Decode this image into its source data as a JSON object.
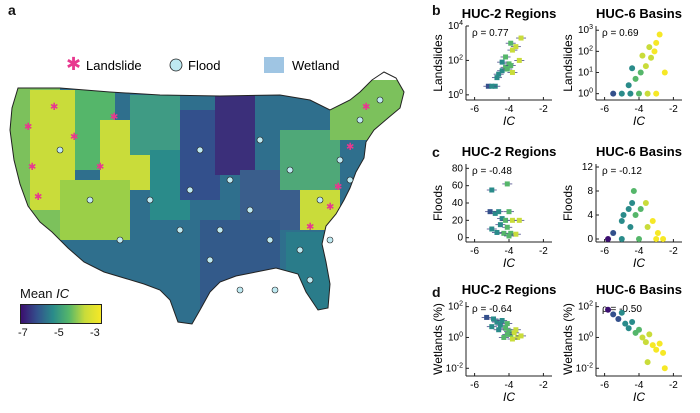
{
  "panel_a": {
    "letter": "a",
    "legend": {
      "landslide": "Landslide",
      "flood": "Flood",
      "wetland": "Wetland"
    },
    "colorbar": {
      "title_prefix": "Mean ",
      "title_var": "IC",
      "ticks": [
        "-7",
        "-5",
        "-3"
      ]
    },
    "colors": {
      "landslide": "#e8388f",
      "flood_fill": "#bfeaf2",
      "wetland": "#9fc5e3",
      "ramp": [
        "#3b0f70",
        "#33508c",
        "#2a8b8a",
        "#55b66a",
        "#c9dc3a",
        "#f6e826"
      ]
    }
  },
  "chart_data": [
    {
      "panel": "b",
      "title": "HUC-2 Regions",
      "type": "scatter",
      "rho": "ρ = 0.77",
      "xlabel": "IC",
      "ylabel": "Landslides",
      "xlim": [
        -6.5,
        -1.5
      ],
      "xticks": [
        "-6",
        "-4",
        "-2"
      ],
      "ylim_log10": [
        -0.3,
        4
      ],
      "yticks": [
        "10^0",
        "10^2",
        "10^4"
      ],
      "points": [
        {
          "x": -5.2,
          "y": 0.5
        },
        {
          "x": -4.8,
          "y": 0.5
        },
        {
          "x": -5.0,
          "y": 0.5
        },
        {
          "x": -4.7,
          "y": 1.0
        },
        {
          "x": -4.6,
          "y": 1.2
        },
        {
          "x": -4.4,
          "y": 1.4
        },
        {
          "x": -4.2,
          "y": 1.6
        },
        {
          "x": -4.0,
          "y": 1.8
        },
        {
          "x": -4.4,
          "y": 1.9
        },
        {
          "x": -3.9,
          "y": 1.7
        },
        {
          "x": -4.2,
          "y": 2.2
        },
        {
          "x": -3.8,
          "y": 2.6
        },
        {
          "x": -3.6,
          "y": 2.8
        },
        {
          "x": -3.3,
          "y": 3.3
        },
        {
          "x": -3.9,
          "y": 3.0
        },
        {
          "x": -3.8,
          "y": 1.3
        },
        {
          "x": -4.1,
          "y": 1.5
        },
        {
          "x": -3.4,
          "y": 2.0
        }
      ]
    },
    {
      "panel": "b",
      "title": "HUC-6 Basins",
      "type": "scatter",
      "rho": "ρ = 0.69",
      "xlabel": "IC",
      "ylabel": "Landslides",
      "xlim": [
        -6.5,
        -1.5
      ],
      "xticks": [
        "-6",
        "-4",
        "-2"
      ],
      "ylim_log10": [
        -0.3,
        3.2
      ],
      "yticks": [
        "10^0",
        "10^1",
        "10^2",
        "10^3"
      ],
      "points": [
        {
          "x": -5.5,
          "y": 0.0
        },
        {
          "x": -5.0,
          "y": 0.0
        },
        {
          "x": -4.5,
          "y": 0.0
        },
        {
          "x": -4.0,
          "y": 0.0
        },
        {
          "x": -3.5,
          "y": 0.0
        },
        {
          "x": -3.0,
          "y": 0.0
        },
        {
          "x": -4.6,
          "y": 0.4
        },
        {
          "x": -4.2,
          "y": 0.7
        },
        {
          "x": -3.9,
          "y": 1.0
        },
        {
          "x": -3.6,
          "y": 1.3
        },
        {
          "x": -3.3,
          "y": 1.7
        },
        {
          "x": -3.1,
          "y": 2.0
        },
        {
          "x": -3.0,
          "y": 2.4
        },
        {
          "x": -2.8,
          "y": 2.8
        },
        {
          "x": -3.4,
          "y": 2.2
        },
        {
          "x": -3.8,
          "y": 1.8
        },
        {
          "x": -2.5,
          "y": 1.0
        },
        {
          "x": -4.4,
          "y": 1.2
        }
      ]
    },
    {
      "panel": "c",
      "title": "HUC-2 Regions",
      "type": "scatter",
      "rho": "ρ = -0.48",
      "xlabel": "IC",
      "ylabel": "Floods",
      "xlim": [
        -6.5,
        -1.5
      ],
      "xticks": [
        "-6",
        "-4",
        "-2"
      ],
      "ylim": [
        -5,
        85
      ],
      "yticks": [
        "0",
        "20",
        "40",
        "60",
        "80"
      ],
      "points": [
        {
          "x": -5.0,
          "y": 55
        },
        {
          "x": -4.1,
          "y": 62
        },
        {
          "x": -5.1,
          "y": 30
        },
        {
          "x": -4.8,
          "y": 28
        },
        {
          "x": -4.6,
          "y": 30
        },
        {
          "x": -4.4,
          "y": 22
        },
        {
          "x": -4.2,
          "y": 20
        },
        {
          "x": -4.0,
          "y": 30
        },
        {
          "x": -3.8,
          "y": 20
        },
        {
          "x": -4.5,
          "y": 15
        },
        {
          "x": -4.1,
          "y": 12
        },
        {
          "x": -4.3,
          "y": 5
        },
        {
          "x": -3.9,
          "y": 5
        },
        {
          "x": -3.4,
          "y": 20
        },
        {
          "x": -3.6,
          "y": 4
        },
        {
          "x": -4.7,
          "y": 6
        },
        {
          "x": -5.0,
          "y": 10
        },
        {
          "x": -4.0,
          "y": 2
        }
      ]
    },
    {
      "panel": "c",
      "title": "HUC-6 Basins",
      "type": "scatter",
      "rho": "ρ = -0.12",
      "xlabel": "IC",
      "ylabel": "Floods",
      "xlim": [
        -6.5,
        -1.5
      ],
      "xticks": [
        "-6",
        "-4",
        "-2"
      ],
      "ylim": [
        -0.5,
        12.5
      ],
      "yticks": [
        "0",
        "4",
        "8",
        "12"
      ],
      "points": [
        {
          "x": -5.8,
          "y": 0
        },
        {
          "x": -5.0,
          "y": 0
        },
        {
          "x": -4.0,
          "y": 0
        },
        {
          "x": -3.0,
          "y": 0
        },
        {
          "x": -2.6,
          "y": 0
        },
        {
          "x": -5.5,
          "y": 1
        },
        {
          "x": -4.5,
          "y": 2
        },
        {
          "x": -3.5,
          "y": 2
        },
        {
          "x": -5.0,
          "y": 3
        },
        {
          "x": -4.2,
          "y": 4
        },
        {
          "x": -3.2,
          "y": 3
        },
        {
          "x": -4.6,
          "y": 5
        },
        {
          "x": -3.9,
          "y": 5
        },
        {
          "x": -4.4,
          "y": 6
        },
        {
          "x": -4.3,
          "y": 8
        },
        {
          "x": -3.6,
          "y": 6
        },
        {
          "x": -4.9,
          "y": 4
        },
        {
          "x": -2.9,
          "y": 1
        }
      ]
    },
    {
      "panel": "d",
      "title": "HUC-2 Regions",
      "type": "scatter",
      "rho": "ρ = -0.64",
      "xlabel": "IC",
      "ylabel": "Wetlands (%)",
      "xlim": [
        -6.5,
        -1.5
      ],
      "xticks": [
        "-6",
        "-4",
        "-2"
      ],
      "ylim_log10": [
        -2.5,
        2.3
      ],
      "yticks": [
        "10^-2",
        "10^0",
        "10^2"
      ],
      "points": [
        {
          "x": -5.3,
          "y": 1.3
        },
        {
          "x": -4.9,
          "y": 1.2
        },
        {
          "x": -4.7,
          "y": 1.0
        },
        {
          "x": -4.5,
          "y": 0.8
        },
        {
          "x": -4.4,
          "y": 1.1
        },
        {
          "x": -4.2,
          "y": 0.6
        },
        {
          "x": -4.1,
          "y": 0.9
        },
        {
          "x": -4.0,
          "y": 0.4
        },
        {
          "x": -3.9,
          "y": 0.2
        },
        {
          "x": -3.7,
          "y": 0.3
        },
        {
          "x": -3.5,
          "y": 0.0
        },
        {
          "x": -3.3,
          "y": 0.1
        },
        {
          "x": -4.3,
          "y": 0.0
        },
        {
          "x": -4.6,
          "y": 0.5
        },
        {
          "x": -3.8,
          "y": -0.1
        },
        {
          "x": -5.0,
          "y": 0.7
        },
        {
          "x": -4.1,
          "y": 0.2
        },
        {
          "x": -3.6,
          "y": 0.5
        }
      ]
    },
    {
      "panel": "d",
      "title": "HUC-6 Basins",
      "type": "scatter",
      "rho": "ρ = -0.50",
      "xlabel": "IC",
      "ylabel": "Wetlands (%)",
      "xlim": [
        -6.5,
        -1.5
      ],
      "xticks": [
        "-6",
        "-4",
        "-2"
      ],
      "ylim_log10": [
        -2.5,
        2.3
      ],
      "yticks": [
        "10^-2",
        "10^0",
        "10^2"
      ],
      "points": [
        {
          "x": -5.8,
          "y": 1.8
        },
        {
          "x": -5.5,
          "y": 1.5
        },
        {
          "x": -5.2,
          "y": 1.2
        },
        {
          "x": -5.0,
          "y": 1.6
        },
        {
          "x": -4.8,
          "y": 0.9
        },
        {
          "x": -4.6,
          "y": 0.6
        },
        {
          "x": -4.4,
          "y": 1.0
        },
        {
          "x": -4.2,
          "y": 0.3
        },
        {
          "x": -4.0,
          "y": 0.5
        },
        {
          "x": -3.8,
          "y": 0.0
        },
        {
          "x": -3.6,
          "y": -0.3
        },
        {
          "x": -3.4,
          "y": 0.2
        },
        {
          "x": -3.2,
          "y": -0.5
        },
        {
          "x": -3.0,
          "y": -0.8
        },
        {
          "x": -2.8,
          "y": -0.4
        },
        {
          "x": -2.6,
          "y": -1.0
        },
        {
          "x": -3.5,
          "y": -1.6
        },
        {
          "x": -2.5,
          "y": -2.0
        }
      ]
    }
  ]
}
